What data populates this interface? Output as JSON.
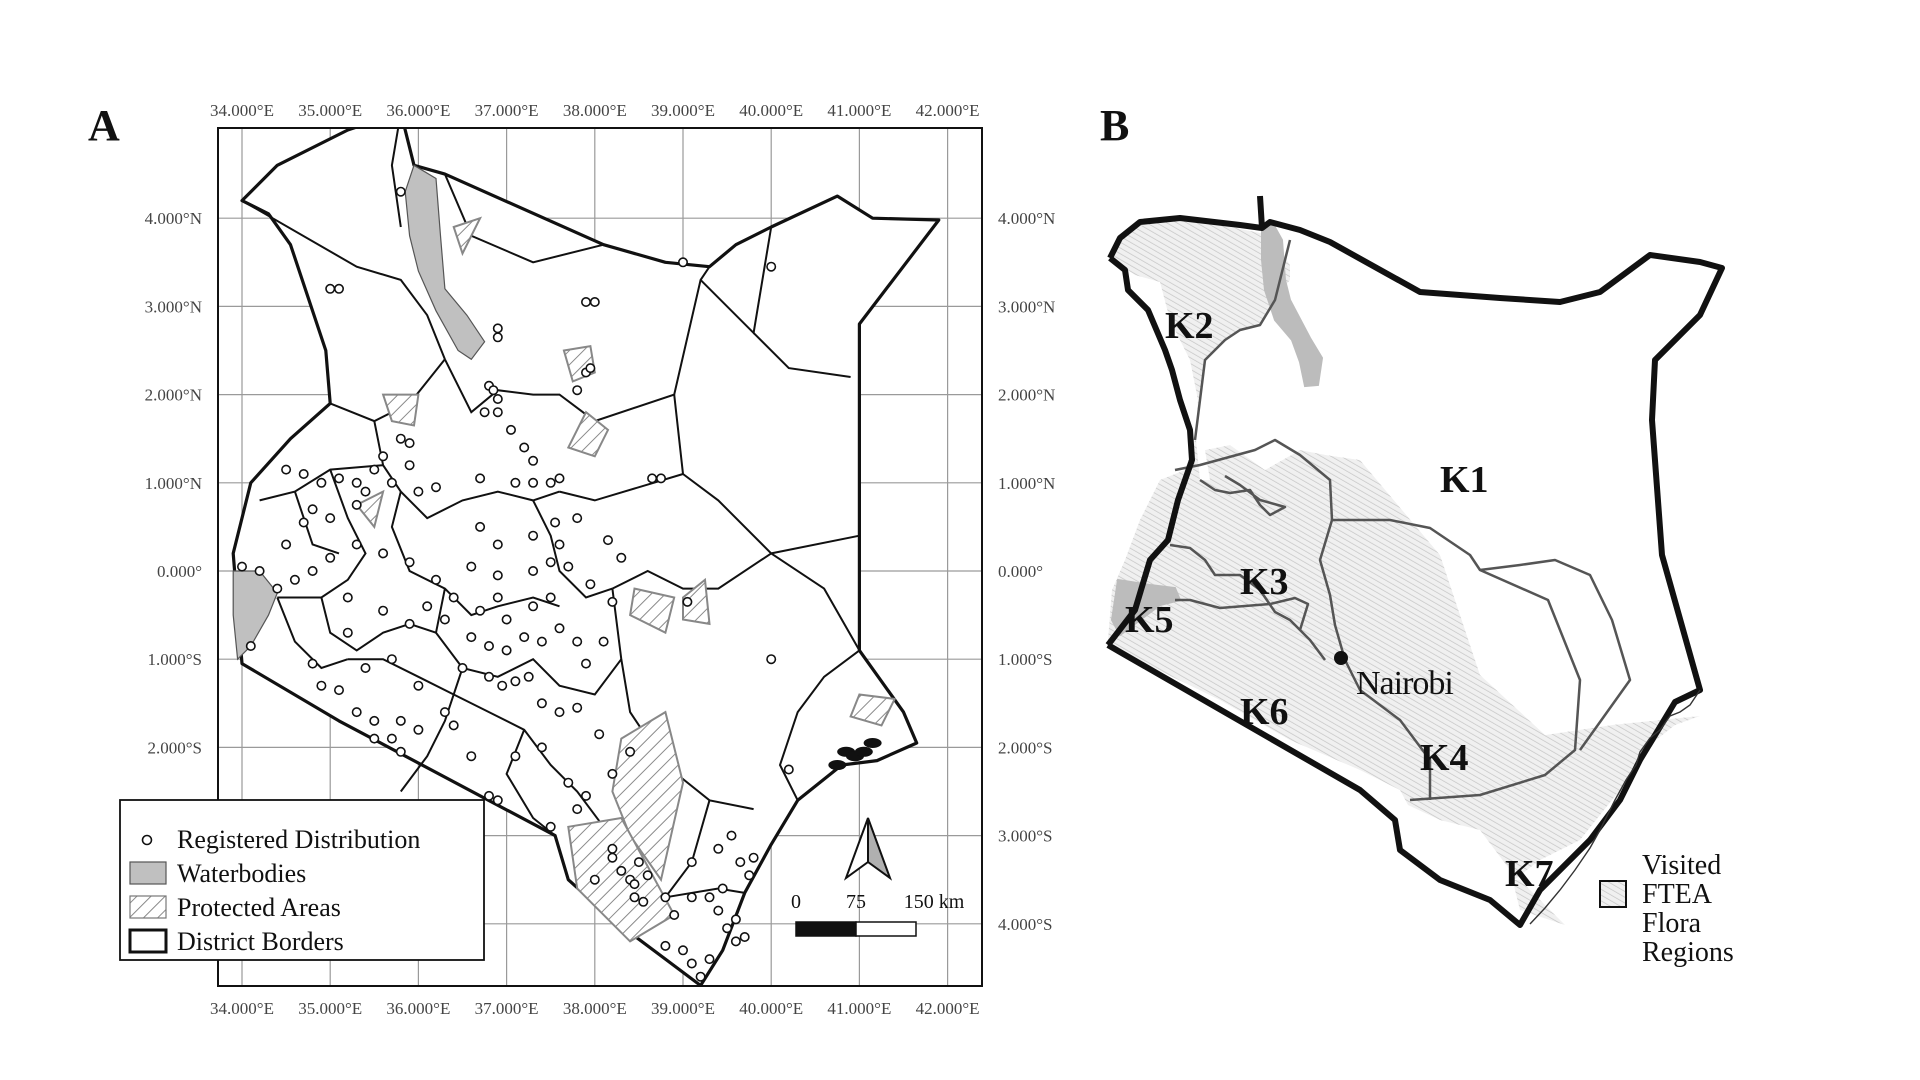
{
  "panel_a": {
    "label": "A",
    "lon_ticks": [
      "34.000°E",
      "35.000°E",
      "36.000°E",
      "37.000°E",
      "38.000°E",
      "39.000°E",
      "40.000°E",
      "41.000°E",
      "42.000°E"
    ],
    "lat_ticks": [
      "4.000°N",
      "3.000°N",
      "2.000°N",
      "1.000°N",
      "0.000°",
      "1.000°S",
      "2.000°S",
      "3.000°S",
      "4.000°S"
    ],
    "legend": {
      "registered": "Registered Distribution",
      "waterbodies": "Waterbodies",
      "protected": "Protected Areas",
      "districts": "District Borders"
    },
    "scalebar": {
      "labels": [
        "0",
        "75",
        "150 km"
      ]
    },
    "points": [
      [
        35.8,
        4.3
      ],
      [
        35.0,
        3.2
      ],
      [
        35.1,
        3.2
      ],
      [
        36.9,
        2.75
      ],
      [
        36.9,
        2.65
      ],
      [
        37.9,
        3.05
      ],
      [
        38.0,
        3.05
      ],
      [
        39.0,
        3.5
      ],
      [
        40.0,
        3.45
      ],
      [
        37.9,
        2.25
      ],
      [
        37.95,
        2.3
      ],
      [
        37.8,
        2.05
      ],
      [
        36.8,
        2.1
      ],
      [
        36.85,
        2.05
      ],
      [
        36.9,
        1.95
      ],
      [
        36.75,
        1.8
      ],
      [
        36.9,
        1.8
      ],
      [
        37.05,
        1.6
      ],
      [
        37.2,
        1.4
      ],
      [
        37.3,
        1.25
      ],
      [
        36.7,
        1.05
      ],
      [
        37.1,
        1.0
      ],
      [
        37.3,
        1.0
      ],
      [
        37.5,
        1.0
      ],
      [
        37.6,
        1.05
      ],
      [
        38.65,
        1.05
      ],
      [
        38.75,
        1.05
      ],
      [
        35.8,
        1.5
      ],
      [
        35.9,
        1.45
      ],
      [
        35.6,
        1.3
      ],
      [
        35.9,
        1.2
      ],
      [
        35.5,
        1.15
      ],
      [
        35.3,
        1.0
      ],
      [
        35.1,
        1.05
      ],
      [
        34.9,
        1.0
      ],
      [
        34.7,
        1.1
      ],
      [
        34.5,
        1.15
      ],
      [
        35.7,
        1.0
      ],
      [
        35.4,
        0.9
      ],
      [
        35.3,
        0.75
      ],
      [
        34.8,
        0.7
      ],
      [
        35.0,
        0.6
      ],
      [
        34.7,
        0.55
      ],
      [
        36.0,
        0.9
      ],
      [
        36.2,
        0.95
      ],
      [
        36.7,
        0.5
      ],
      [
        36.9,
        0.3
      ],
      [
        37.3,
        0.4
      ],
      [
        37.6,
        0.3
      ],
      [
        38.15,
        0.35
      ],
      [
        38.3,
        0.15
      ],
      [
        37.7,
        0.05
      ],
      [
        37.5,
        0.1
      ],
      [
        37.3,
        0.0
      ],
      [
        36.9,
        -0.05
      ],
      [
        36.6,
        0.05
      ],
      [
        36.2,
        -0.1
      ],
      [
        35.9,
        0.1
      ],
      [
        35.6,
        0.2
      ],
      [
        35.3,
        0.3
      ],
      [
        35.0,
        0.15
      ],
      [
        34.8,
        0.0
      ],
      [
        34.6,
        -0.1
      ],
      [
        34.4,
        -0.2
      ],
      [
        34.2,
        0.0
      ],
      [
        34.5,
        0.3
      ],
      [
        34.0,
        0.05
      ],
      [
        35.2,
        -0.3
      ],
      [
        35.6,
        -0.45
      ],
      [
        35.9,
        -0.6
      ],
      [
        36.1,
        -0.4
      ],
      [
        36.3,
        -0.55
      ],
      [
        36.6,
        -0.75
      ],
      [
        36.8,
        -0.85
      ],
      [
        37.0,
        -0.9
      ],
      [
        37.2,
        -0.75
      ],
      [
        37.4,
        -0.8
      ],
      [
        37.6,
        -0.65
      ],
      [
        37.8,
        -0.8
      ],
      [
        38.1,
        -0.8
      ],
      [
        38.2,
        -0.35
      ],
      [
        36.5,
        -1.1
      ],
      [
        36.8,
        -1.2
      ],
      [
        36.95,
        -1.3
      ],
      [
        37.1,
        -1.25
      ],
      [
        37.25,
        -1.2
      ],
      [
        37.4,
        -1.5
      ],
      [
        37.6,
        -1.6
      ],
      [
        37.8,
        -1.55
      ],
      [
        38.05,
        -1.85
      ],
      [
        36.3,
        -1.6
      ],
      [
        36.0,
        -1.8
      ],
      [
        35.8,
        -1.7
      ],
      [
        35.7,
        -1.9
      ],
      [
        35.5,
        -1.7
      ],
      [
        35.3,
        -1.6
      ],
      [
        35.1,
        -1.35
      ],
      [
        34.9,
        -1.3
      ],
      [
        35.4,
        -1.1
      ],
      [
        35.7,
        -1.0
      ],
      [
        36.0,
        -1.3
      ],
      [
        36.6,
        -2.1
      ],
      [
        36.4,
        -1.75
      ],
      [
        37.1,
        -2.1
      ],
      [
        37.4,
        -2.0
      ],
      [
        37.7,
        -2.4
      ],
      [
        37.9,
        -2.55
      ],
      [
        38.2,
        -2.3
      ],
      [
        38.4,
        -2.05
      ],
      [
        37.8,
        -2.7
      ],
      [
        37.5,
        -2.9
      ],
      [
        36.8,
        -2.55
      ],
      [
        36.9,
        -2.6
      ],
      [
        39.05,
        -0.35
      ],
      [
        40.0,
        -1.0
      ],
      [
        40.2,
        -2.25
      ],
      [
        38.0,
        -3.5
      ],
      [
        38.2,
        -3.25
      ],
      [
        38.3,
        -3.4
      ],
      [
        38.4,
        -3.5
      ],
      [
        38.45,
        -3.55
      ],
      [
        38.5,
        -3.3
      ],
      [
        38.6,
        -3.45
      ],
      [
        38.45,
        -3.7
      ],
      [
        38.55,
        -3.75
      ],
      [
        38.2,
        -3.15
      ],
      [
        39.1,
        -3.3
      ],
      [
        39.4,
        -3.15
      ],
      [
        39.55,
        -3.0
      ],
      [
        39.65,
        -3.3
      ],
      [
        39.75,
        -3.45
      ],
      [
        39.8,
        -3.25
      ],
      [
        39.45,
        -3.6
      ],
      [
        39.4,
        -3.85
      ],
      [
        39.6,
        -3.95
      ],
      [
        39.5,
        -4.05
      ],
      [
        39.6,
        -4.2
      ],
      [
        39.7,
        -4.15
      ],
      [
        39.3,
        -4.4
      ],
      [
        39.2,
        -4.6
      ],
      [
        39.1,
        -4.45
      ],
      [
        39.0,
        -4.3
      ],
      [
        38.8,
        -4.25
      ],
      [
        38.9,
        -3.9
      ],
      [
        38.8,
        -3.7
      ],
      [
        39.1,
        -3.7
      ],
      [
        39.3,
        -3.7
      ],
      [
        37.9,
        -1.05
      ],
      [
        37.3,
        -0.4
      ],
      [
        36.9,
        -0.3
      ],
      [
        36.7,
        -0.45
      ],
      [
        35.8,
        -2.05
      ],
      [
        34.1,
        -0.85
      ],
      [
        34.8,
        -1.05
      ],
      [
        35.2,
        -0.7
      ],
      [
        36.4,
        -0.3
      ],
      [
        37.0,
        -0.55
      ],
      [
        37.5,
        -0.3
      ],
      [
        37.95,
        -0.15
      ],
      [
        35.5,
        -1.9
      ],
      [
        37.8,
        0.6
      ],
      [
        37.55,
        0.55
      ]
    ],
    "kenya_outline": [
      [
        34.0,
        4.2
      ],
      [
        34.4,
        4.6
      ],
      [
        35.2,
        5.0
      ],
      [
        35.8,
        5.2
      ],
      [
        35.95,
        4.6
      ],
      [
        36.3,
        4.5
      ],
      [
        38.1,
        3.7
      ],
      [
        38.8,
        3.5
      ],
      [
        39.3,
        3.45
      ],
      [
        39.6,
        3.7
      ],
      [
        40.0,
        3.9
      ],
      [
        40.75,
        4.25
      ],
      [
        41.15,
        4.0
      ],
      [
        41.9,
        3.98
      ],
      [
        41.0,
        2.8
      ],
      [
        41.0,
        -0.9
      ],
      [
        41.5,
        -1.6
      ],
      [
        41.65,
        -1.95
      ],
      [
        41.2,
        -2.15
      ],
      [
        40.8,
        -2.2
      ],
      [
        40.3,
        -2.6
      ],
      [
        40.0,
        -3.1
      ],
      [
        39.7,
        -3.65
      ],
      [
        39.45,
        -4.3
      ],
      [
        39.2,
        -4.7
      ],
      [
        38.8,
        -4.4
      ],
      [
        38.2,
        -3.95
      ],
      [
        37.7,
        -3.5
      ],
      [
        37.55,
        -3.0
      ],
      [
        35.1,
        -1.7
      ],
      [
        34.0,
        -1.05
      ],
      [
        33.9,
        0.2
      ],
      [
        34.1,
        1.0
      ],
      [
        34.55,
        1.5
      ],
      [
        35.0,
        1.9
      ],
      [
        34.95,
        2.5
      ],
      [
        34.55,
        3.7
      ],
      [
        34.3,
        4.05
      ],
      [
        34.0,
        4.2
      ]
    ],
    "lake_turkana": [
      [
        35.95,
        4.6
      ],
      [
        36.2,
        4.45
      ],
      [
        36.25,
        3.8
      ],
      [
        36.3,
        3.2
      ],
      [
        36.55,
        2.9
      ],
      [
        36.75,
        2.6
      ],
      [
        36.6,
        2.4
      ],
      [
        36.45,
        2.5
      ],
      [
        36.2,
        2.95
      ],
      [
        36.0,
        3.4
      ],
      [
        35.9,
        3.8
      ],
      [
        35.85,
        4.3
      ],
      [
        35.95,
        4.6
      ]
    ],
    "lake_victoria": [
      [
        33.9,
        0.0
      ],
      [
        34.2,
        0.0
      ],
      [
        34.4,
        -0.25
      ],
      [
        34.3,
        -0.5
      ],
      [
        34.1,
        -0.85
      ],
      [
        33.95,
        -1.0
      ],
      [
        33.9,
        -0.5
      ],
      [
        33.9,
        0.0
      ]
    ],
    "protected_areas": [
      [
        [
          35.6,
          2.0
        ],
        [
          36.0,
          2.0
        ],
        [
          35.95,
          1.65
        ],
        [
          35.7,
          1.7
        ]
      ],
      [
        [
          37.65,
          2.5
        ],
        [
          37.95,
          2.55
        ],
        [
          38.0,
          2.25
        ],
        [
          37.75,
          2.15
        ]
      ],
      [
        [
          37.9,
          1.8
        ],
        [
          38.15,
          1.6
        ],
        [
          38.0,
          1.3
        ],
        [
          37.7,
          1.4
        ]
      ],
      [
        [
          38.45,
          -0.2
        ],
        [
          38.9,
          -0.3
        ],
        [
          38.8,
          -0.7
        ],
        [
          38.4,
          -0.5
        ]
      ],
      [
        [
          38.3,
          -1.9
        ],
        [
          38.8,
          -1.6
        ],
        [
          39.0,
          -2.4
        ],
        [
          38.75,
          -3.5
        ],
        [
          38.4,
          -3.0
        ],
        [
          38.2,
          -2.5
        ]
      ],
      [
        [
          37.7,
          -2.9
        ],
        [
          38.3,
          -2.8
        ],
        [
          38.9,
          -3.9
        ],
        [
          38.4,
          -4.2
        ],
        [
          37.8,
          -3.6
        ]
      ],
      [
        [
          39.0,
          -0.3
        ],
        [
          39.25,
          -0.1
        ],
        [
          39.3,
          -0.6
        ],
        [
          39.0,
          -0.55
        ]
      ],
      [
        [
          41.0,
          -1.4
        ],
        [
          41.4,
          -1.45
        ],
        [
          41.25,
          -1.75
        ],
        [
          40.9,
          -1.65
        ]
      ],
      [
        [
          35.3,
          0.75
        ],
        [
          35.6,
          0.9
        ],
        [
          35.5,
          0.5
        ]
      ],
      [
        [
          36.4,
          3.9
        ],
        [
          36.7,
          4.0
        ],
        [
          36.5,
          3.6
        ]
      ]
    ]
  },
  "panel_b": {
    "label": "B",
    "regions": [
      "K1",
      "K2",
      "K3",
      "K4",
      "K5",
      "K6",
      "K7"
    ],
    "city": "Nairobi",
    "legend_lines": [
      "Visited",
      "FTEA",
      "Flora",
      "Regions"
    ]
  }
}
